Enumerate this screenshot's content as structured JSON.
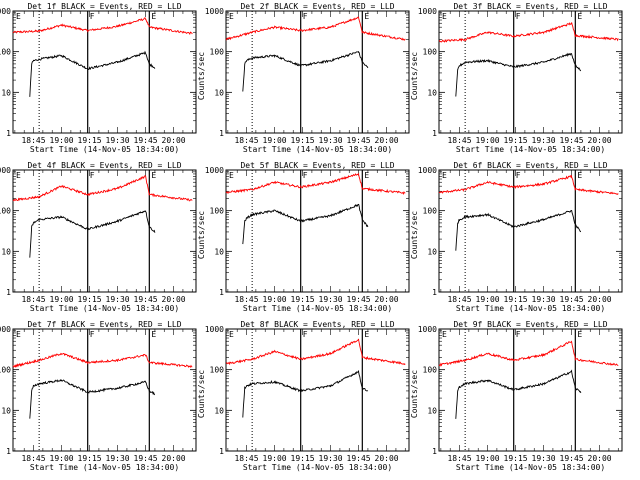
{
  "figure": {
    "x_tick_labels": [
      "18:45",
      "19:00",
      "19:15",
      "19:30",
      "19:45",
      "20:00"
    ],
    "y_tick_labels": [
      "1",
      "10",
      "100",
      "1000"
    ],
    "ylabel": "Counts/sec",
    "xlabel": "Start Time (14-Nov-05 18:34:00)",
    "colors": {
      "events": "#000000",
      "lld": "#ff0000"
    }
  },
  "chart_data": [
    {
      "type": "line",
      "title": "Det 1f BLACK = Events, RED = LLD",
      "xlabel": "Start Time (14-Nov-05 18:34:00)",
      "ylabel": "Counts/sec",
      "ylog": true,
      "ylim": [
        1,
        1000
      ],
      "xlim": [
        "18:34",
        "20:12"
      ],
      "x_ticks": [
        "18:45",
        "19:00",
        "19:15",
        "19:30",
        "19:45",
        "20:00"
      ],
      "annotations": [
        "E",
        "F",
        "E"
      ],
      "markers": [
        "18:48",
        "19:14",
        "19:47"
      ],
      "series": [
        {
          "color": "#ff0000",
          "x": [
            "18:34",
            "18:48",
            "19:00",
            "19:14",
            "19:30",
            "19:45",
            "19:47",
            "20:10"
          ],
          "values": [
            300,
            320,
            450,
            330,
            420,
            650,
            400,
            280
          ]
        },
        {
          "color": "#000000",
          "x": [
            "18:43",
            "18:44",
            "18:45",
            "18:48",
            "19:00",
            "19:14",
            "19:30",
            "19:45",
            "19:47",
            "19:50"
          ],
          "values": [
            8,
            50,
            60,
            65,
            80,
            38,
            55,
            95,
            50,
            40
          ]
        }
      ]
    },
    {
      "type": "line",
      "title": "Det 2f BLACK = Events, RED = LLD",
      "xlabel": "Start Time (14-Nov-05 18:34:00)",
      "ylabel": "Counts/sec",
      "ylog": true,
      "ylim": [
        1,
        1000
      ],
      "xlim": [
        "18:34",
        "20:12"
      ],
      "x_ticks": [
        "18:45",
        "19:00",
        "19:15",
        "19:30",
        "19:45",
        "20:00"
      ],
      "annotations": [
        "E",
        "F",
        "E"
      ],
      "markers": [
        "18:48",
        "19:14",
        "19:47"
      ],
      "series": [
        {
          "color": "#ff0000",
          "x": [
            "18:34",
            "18:48",
            "19:00",
            "19:14",
            "19:30",
            "19:45",
            "19:47",
            "20:10"
          ],
          "values": [
            200,
            300,
            400,
            330,
            400,
            700,
            300,
            200
          ]
        },
        {
          "color": "#000000",
          "x": [
            "18:43",
            "18:44",
            "18:45",
            "18:48",
            "19:00",
            "19:14",
            "19:30",
            "19:45",
            "19:47",
            "19:50"
          ],
          "values": [
            10,
            50,
            60,
            70,
            80,
            45,
            60,
            100,
            55,
            40
          ]
        }
      ]
    },
    {
      "type": "line",
      "title": "Det 3f BLACK = Events, RED = LLD",
      "xlabel": "Start Time (14-Nov-05 18:34:00)",
      "ylabel": "Counts/sec",
      "ylog": true,
      "ylim": [
        1,
        1000
      ],
      "xlim": [
        "18:34",
        "20:12"
      ],
      "x_ticks": [
        "18:45",
        "19:00",
        "19:15",
        "19:30",
        "19:45",
        "20:00"
      ],
      "annotations": [
        "E",
        "F",
        "E"
      ],
      "markers": [
        "18:48",
        "19:14",
        "19:47"
      ],
      "series": [
        {
          "color": "#ff0000",
          "x": [
            "18:34",
            "18:48",
            "19:00",
            "19:14",
            "19:30",
            "19:45",
            "19:47",
            "20:10"
          ],
          "values": [
            180,
            200,
            300,
            240,
            300,
            500,
            250,
            200
          ]
        },
        {
          "color": "#000000",
          "x": [
            "18:43",
            "18:44",
            "18:45",
            "18:48",
            "19:00",
            "19:14",
            "19:30",
            "19:45",
            "19:47",
            "19:50"
          ],
          "values": [
            8,
            35,
            45,
            55,
            60,
            42,
            55,
            90,
            45,
            35
          ]
        }
      ]
    },
    {
      "type": "line",
      "title": "Det 4f BLACK = Events, RED = LLD",
      "xlabel": "Start Time (14-Nov-05 18:34:00)",
      "ylabel": "Counts/sec",
      "ylog": true,
      "ylim": [
        1,
        1000
      ],
      "xlim": [
        "18:34",
        "20:12"
      ],
      "x_ticks": [
        "18:45",
        "19:00",
        "19:15",
        "19:30",
        "19:45",
        "20:00"
      ],
      "annotations": [
        "E",
        "F",
        "E"
      ],
      "markers": [
        "18:48",
        "19:14",
        "19:47"
      ],
      "series": [
        {
          "color": "#ff0000",
          "x": [
            "18:34",
            "18:48",
            "19:00",
            "19:14",
            "19:30",
            "19:45",
            "19:47",
            "20:10"
          ],
          "values": [
            180,
            220,
            400,
            250,
            350,
            700,
            250,
            180
          ]
        },
        {
          "color": "#000000",
          "x": [
            "18:43",
            "18:44",
            "18:45",
            "18:48",
            "19:00",
            "19:14",
            "19:30",
            "19:45",
            "19:47",
            "19:50"
          ],
          "values": [
            7,
            40,
            50,
            60,
            70,
            35,
            55,
            100,
            40,
            30
          ]
        }
      ]
    },
    {
      "type": "line",
      "title": "Det 5f BLACK = Events, RED = LLD",
      "xlabel": "Start Time (14-Nov-05 18:34:00)",
      "ylabel": "Counts/sec",
      "ylog": true,
      "ylim": [
        1,
        1000
      ],
      "xlim": [
        "18:34",
        "20:12"
      ],
      "x_ticks": [
        "18:45",
        "19:00",
        "19:15",
        "19:30",
        "19:45",
        "20:00"
      ],
      "annotations": [
        "E",
        "F",
        "E"
      ],
      "markers": [
        "18:48",
        "19:14",
        "19:47"
      ],
      "series": [
        {
          "color": "#ff0000",
          "x": [
            "18:34",
            "18:48",
            "19:00",
            "19:14",
            "19:30",
            "19:45",
            "19:47",
            "20:10"
          ],
          "values": [
            280,
            330,
            500,
            380,
            500,
            800,
            350,
            270
          ]
        },
        {
          "color": "#000000",
          "x": [
            "18:43",
            "18:44",
            "18:45",
            "18:48",
            "19:00",
            "19:14",
            "19:30",
            "19:45",
            "19:47",
            "19:50"
          ],
          "values": [
            15,
            55,
            65,
            80,
            100,
            55,
            75,
            140,
            60,
            40
          ]
        }
      ]
    },
    {
      "type": "line",
      "title": "Det 6f BLACK = Events, RED = LLD",
      "xlabel": "Start Time (14-Nov-05 18:34:00)",
      "ylabel": "Counts/sec",
      "ylog": true,
      "ylim": [
        1,
        1000
      ],
      "xlim": [
        "18:34",
        "20:12"
      ],
      "x_ticks": [
        "18:45",
        "19:00",
        "19:15",
        "19:30",
        "19:45",
        "20:00"
      ],
      "annotations": [
        "E",
        "F",
        "E"
      ],
      "markers": [
        "18:48",
        "19:14",
        "19:47"
      ],
      "series": [
        {
          "color": "#ff0000",
          "x": [
            "18:34",
            "18:48",
            "19:00",
            "19:14",
            "19:30",
            "19:45",
            "19:47",
            "20:10"
          ],
          "values": [
            280,
            330,
            500,
            380,
            450,
            700,
            330,
            260
          ]
        },
        {
          "color": "#000000",
          "x": [
            "18:43",
            "18:44",
            "18:45",
            "18:48",
            "19:00",
            "19:14",
            "19:30",
            "19:45",
            "19:47",
            "19:50"
          ],
          "values": [
            10,
            50,
            60,
            70,
            80,
            40,
            60,
            100,
            45,
            30
          ]
        }
      ]
    },
    {
      "type": "line",
      "title": "Det 7f BLACK = Events, RED = LLD",
      "xlabel": "Start Time (14-Nov-05 18:34:00)",
      "ylabel": "Counts/sec",
      "ylog": true,
      "ylim": [
        1,
        1000
      ],
      "xlim": [
        "18:34",
        "20:12"
      ],
      "x_ticks": [
        "18:45",
        "19:00",
        "19:15",
        "19:30",
        "19:45",
        "20:00"
      ],
      "annotations": [
        "E",
        "F",
        "E"
      ],
      "markers": [
        "18:48",
        "19:14",
        "19:47"
      ],
      "series": [
        {
          "color": "#ff0000",
          "x": [
            "18:34",
            "18:48",
            "19:00",
            "19:14",
            "19:30",
            "19:45",
            "19:47",
            "20:10"
          ],
          "values": [
            120,
            170,
            250,
            150,
            170,
            230,
            150,
            120
          ]
        },
        {
          "color": "#000000",
          "x": [
            "18:43",
            "18:44",
            "18:45",
            "18:48",
            "19:00",
            "19:14",
            "19:30",
            "19:45",
            "19:47",
            "19:50"
          ],
          "values": [
            6,
            30,
            40,
            45,
            55,
            28,
            35,
            50,
            30,
            25
          ]
        }
      ]
    },
    {
      "type": "line",
      "title": "Det 8f BLACK = Events, RED = LLD",
      "xlabel": "Start Time (14-Nov-05 18:34:00)",
      "ylabel": "Counts/sec",
      "ylog": true,
      "ylim": [
        1,
        1000
      ],
      "xlim": [
        "18:34",
        "20:12"
      ],
      "x_ticks": [
        "18:45",
        "19:00",
        "19:15",
        "19:30",
        "19:45",
        "20:00"
      ],
      "annotations": [
        "E",
        "F",
        "E"
      ],
      "markers": [
        "18:48",
        "19:14",
        "19:47"
      ],
      "series": [
        {
          "color": "#ff0000",
          "x": [
            "18:34",
            "18:48",
            "19:00",
            "19:14",
            "19:30",
            "19:45",
            "19:47",
            "20:10"
          ],
          "values": [
            140,
            180,
            280,
            180,
            250,
            550,
            200,
            140
          ]
        },
        {
          "color": "#000000",
          "x": [
            "18:43",
            "18:44",
            "18:45",
            "18:48",
            "19:00",
            "19:14",
            "19:30",
            "19:45",
            "19:47",
            "19:50"
          ],
          "values": [
            7,
            35,
            40,
            45,
            50,
            30,
            40,
            90,
            35,
            30
          ]
        }
      ]
    },
    {
      "type": "line",
      "title": "Det 9f BLACK = Events, RED = LLD",
      "xlabel": "Start Time (14-Nov-05 18:34:00)",
      "ylabel": "Counts/sec",
      "ylog": true,
      "ylim": [
        1,
        1000
      ],
      "xlim": [
        "18:34",
        "20:12"
      ],
      "x_ticks": [
        "18:45",
        "19:00",
        "19:15",
        "19:30",
        "19:45",
        "20:00"
      ],
      "annotations": [
        "E",
        "F",
        "E"
      ],
      "markers": [
        "18:48",
        "19:14",
        "19:47"
      ],
      "series": [
        {
          "color": "#ff0000",
          "x": [
            "18:34",
            "18:48",
            "19:00",
            "19:14",
            "19:30",
            "19:45",
            "19:47",
            "20:10"
          ],
          "values": [
            130,
            170,
            250,
            170,
            230,
            500,
            180,
            130
          ]
        },
        {
          "color": "#000000",
          "x": [
            "18:43",
            "18:44",
            "18:45",
            "18:48",
            "19:00",
            "19:14",
            "19:30",
            "19:45",
            "19:47",
            "19:50"
          ],
          "values": [
            6,
            30,
            38,
            45,
            55,
            32,
            45,
            90,
            35,
            28
          ]
        }
      ]
    }
  ]
}
